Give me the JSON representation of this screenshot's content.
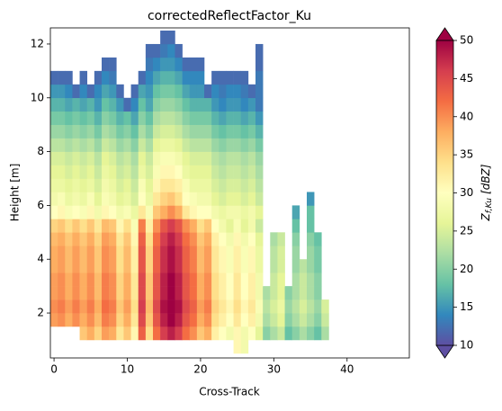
{
  "chart_data": {
    "type": "heatmap",
    "title": "correctedReflectFactor_Ku",
    "x_label": "Cross-Track",
    "y_label": "Height [m]",
    "colorbar_label": {
      "main": "Z",
      "sub": "f,Ku",
      "unit": "[dBZ]"
    },
    "xlim": [
      -0.5,
      48.5
    ],
    "xticks": [
      0,
      10,
      20,
      30,
      40
    ],
    "ylim": [
      0.33,
      12.6
    ],
    "yticks": [
      2,
      4,
      6,
      8,
      10,
      12
    ],
    "clim": [
      10,
      50
    ],
    "cticks": [
      10,
      15,
      20,
      25,
      30,
      35,
      40,
      45,
      50
    ],
    "colormap": [
      "#5e4fa2",
      "#3288bd",
      "#66c2a5",
      "#abdda4",
      "#e6f598",
      "#ffffbf",
      "#fee08b",
      "#fdae61",
      "#f46d43",
      "#d53e4f",
      "#9e0142"
    ],
    "x": [
      0,
      1,
      2,
      3,
      4,
      5,
      6,
      7,
      8,
      9,
      10,
      11,
      12,
      13,
      14,
      15,
      16,
      17,
      18,
      19,
      20,
      21,
      22,
      23,
      24,
      25,
      26,
      27,
      28,
      29,
      30,
      31,
      32,
      33,
      34,
      35,
      36,
      37
    ],
    "y": [
      0.75,
      1.25,
      1.75,
      2.25,
      2.75,
      3.25,
      3.75,
      4.25,
      4.75,
      5.25,
      5.75,
      6.25,
      6.75,
      7.25,
      7.75,
      8.25,
      8.75,
      9.25,
      9.75,
      10.25,
      10.75,
      11.25,
      11.75,
      12.25
    ],
    "z": [
      [
        null,
        null,
        null,
        null,
        null,
        null,
        null,
        null,
        null,
        null,
        null,
        null,
        null,
        null,
        null,
        null,
        null,
        null,
        null,
        null,
        null,
        null,
        null,
        null,
        null,
        31,
        28,
        null,
        null,
        null,
        null,
        null,
        null,
        null,
        null,
        null,
        null,
        null
      ],
      [
        null,
        null,
        null,
        null,
        36,
        38,
        35,
        39,
        38,
        33,
        36,
        31,
        43,
        34,
        42,
        46,
        48,
        46,
        42,
        40,
        36,
        38,
        32,
        30,
        28,
        31,
        28,
        30,
        26,
        20,
        22,
        24,
        18,
        20,
        22,
        20,
        18,
        22
      ],
      [
        39,
        40,
        38,
        40,
        38,
        40,
        37,
        41,
        40,
        35,
        38,
        33,
        45,
        36,
        44,
        48,
        50,
        48,
        44,
        42,
        38,
        40,
        34,
        32,
        30,
        33,
        30,
        32,
        28,
        22,
        24,
        26,
        20,
        22,
        24,
        22,
        20,
        24
      ],
      [
        40,
        41,
        39,
        41,
        39,
        41,
        38,
        42,
        41,
        36,
        39,
        34,
        46,
        37,
        45,
        49,
        50,
        49,
        45,
        43,
        39,
        41,
        35,
        33,
        31,
        34,
        31,
        33,
        29,
        23,
        25,
        27,
        21,
        23,
        25,
        23,
        21,
        25
      ],
      [
        39,
        40,
        38,
        40,
        38,
        40,
        37,
        41,
        40,
        35,
        38,
        33,
        45,
        36,
        44,
        48,
        50,
        48,
        44,
        42,
        38,
        40,
        34,
        32,
        30,
        33,
        30,
        32,
        28,
        22,
        24,
        26,
        20,
        22,
        24,
        22,
        20,
        null
      ],
      [
        39,
        40,
        38,
        40,
        38,
        40,
        37,
        41,
        40,
        35,
        38,
        33,
        45,
        36,
        44,
        48,
        50,
        48,
        44,
        42,
        38,
        40,
        34,
        32,
        30,
        33,
        30,
        32,
        28,
        null,
        24,
        26,
        null,
        22,
        24,
        22,
        20,
        null
      ],
      [
        38,
        39,
        37,
        39,
        37,
        39,
        36,
        40,
        39,
        34,
        37,
        32,
        44,
        35,
        43,
        47,
        49,
        47,
        43,
        41,
        37,
        39,
        33,
        31,
        29,
        32,
        29,
        31,
        27,
        null,
        23,
        25,
        null,
        21,
        23,
        21,
        19,
        null
      ],
      [
        38,
        39,
        37,
        39,
        37,
        39,
        36,
        40,
        39,
        34,
        37,
        32,
        44,
        35,
        43,
        47,
        49,
        47,
        43,
        41,
        37,
        39,
        33,
        31,
        29,
        32,
        29,
        31,
        27,
        null,
        23,
        25,
        null,
        21,
        null,
        21,
        19,
        null
      ],
      [
        37,
        38,
        36,
        38,
        36,
        38,
        35,
        39,
        38,
        33,
        36,
        31,
        43,
        34,
        42,
        46,
        48,
        46,
        42,
        40,
        36,
        38,
        32,
        30,
        28,
        31,
        28,
        30,
        26,
        null,
        22,
        24,
        null,
        20,
        null,
        20,
        18,
        null
      ],
      [
        35,
        36,
        34,
        36,
        34,
        36,
        33,
        37,
        36,
        31,
        34,
        29,
        41,
        32,
        40,
        44,
        46,
        44,
        40,
        38,
        34,
        36,
        30,
        28,
        26,
        29,
        26,
        28,
        24,
        null,
        null,
        null,
        null,
        18,
        null,
        18,
        null,
        null
      ],
      [
        30,
        31,
        29,
        30,
        29,
        31,
        28,
        31,
        30,
        28,
        29,
        27,
        33,
        29,
        36,
        38,
        40,
        38,
        33,
        31,
        30,
        30,
        28,
        27,
        28,
        28,
        27,
        28,
        26,
        null,
        null,
        null,
        null,
        16,
        null,
        18,
        null,
        null
      ],
      [
        28,
        29,
        27,
        28,
        27,
        29,
        26,
        29,
        28,
        26,
        27,
        25,
        30,
        27,
        33,
        35,
        36,
        34,
        30,
        29,
        28,
        28,
        26,
        25,
        26,
        26,
        25,
        26,
        24,
        null,
        null,
        null,
        null,
        null,
        null,
        15,
        null,
        null
      ],
      [
        27,
        27,
        26,
        27,
        26,
        27,
        25,
        28,
        27,
        25,
        26,
        24,
        29,
        26,
        31,
        33,
        33,
        32,
        29,
        27,
        27,
        27,
        25,
        24,
        25,
        25,
        24,
        25,
        23,
        null,
        null,
        null,
        null,
        null,
        null,
        null,
        null,
        null
      ],
      [
        26,
        26,
        25,
        26,
        25,
        26,
        24,
        27,
        26,
        24,
        25,
        23,
        27,
        25,
        29,
        31,
        31,
        30,
        27,
        26,
        26,
        26,
        24,
        23,
        24,
        24,
        23,
        24,
        22,
        null,
        null,
        null,
        null,
        null,
        null,
        null,
        null,
        null
      ],
      [
        25,
        25,
        24,
        25,
        24,
        25,
        23,
        26,
        25,
        23,
        24,
        22,
        26,
        24,
        28,
        29,
        29,
        28,
        26,
        25,
        25,
        25,
        23,
        22,
        23,
        23,
        22,
        23,
        21,
        null,
        null,
        null,
        null,
        null,
        null,
        null,
        null,
        null
      ],
      [
        23,
        23,
        22,
        23,
        22,
        23,
        21,
        24,
        23,
        21,
        22,
        20,
        24,
        22,
        26,
        27,
        27,
        26,
        24,
        23,
        23,
        23,
        21,
        20,
        21,
        21,
        20,
        21,
        19,
        null,
        null,
        null,
        null,
        null,
        null,
        null,
        null,
        null
      ],
      [
        21,
        21,
        20,
        21,
        20,
        21,
        19,
        22,
        21,
        19,
        20,
        18,
        22,
        20,
        24,
        25,
        25,
        24,
        22,
        21,
        21,
        21,
        19,
        18,
        19,
        19,
        18,
        19,
        17,
        null,
        null,
        null,
        null,
        null,
        null,
        null,
        null,
        null
      ],
      [
        19,
        19,
        18,
        19,
        18,
        19,
        17,
        20,
        19,
        17,
        18,
        16,
        20,
        18,
        22,
        23,
        23,
        22,
        20,
        19,
        19,
        19,
        17,
        16,
        17,
        17,
        16,
        17,
        15,
        null,
        null,
        null,
        null,
        null,
        null,
        null,
        null,
        null
      ],
      [
        17,
        17,
        16,
        17,
        16,
        17,
        15,
        18,
        17,
        15,
        12,
        14,
        18,
        16,
        20,
        21,
        21,
        20,
        18,
        17,
        17,
        17,
        15,
        14,
        15,
        15,
        14,
        15,
        13,
        null,
        null,
        null,
        null,
        null,
        null,
        null,
        null,
        null
      ],
      [
        15,
        15,
        14,
        12,
        14,
        12,
        14,
        16,
        15,
        12,
        null,
        12,
        16,
        15,
        18,
        19,
        19,
        18,
        16,
        15,
        15,
        12,
        14,
        13,
        14,
        14,
        13,
        12,
        13,
        null,
        null,
        null,
        null,
        null,
        null,
        null,
        null,
        null
      ],
      [
        12,
        12,
        12,
        null,
        12,
        null,
        12,
        14,
        13,
        null,
        null,
        null,
        12,
        14,
        16,
        17,
        17,
        16,
        14,
        14,
        14,
        null,
        12,
        12,
        12,
        12,
        12,
        null,
        13,
        null,
        null,
        null,
        null,
        null,
        null,
        null,
        null,
        null
      ],
      [
        null,
        null,
        null,
        null,
        null,
        null,
        null,
        12,
        12,
        null,
        null,
        null,
        null,
        13,
        14,
        15,
        15,
        14,
        12,
        12,
        12,
        null,
        null,
        null,
        null,
        null,
        null,
        null,
        12,
        null,
        null,
        null,
        null,
        null,
        null,
        null,
        null,
        null
      ],
      [
        null,
        null,
        null,
        null,
        null,
        null,
        null,
        null,
        null,
        null,
        null,
        null,
        null,
        12,
        12,
        13,
        14,
        12,
        null,
        null,
        null,
        null,
        null,
        null,
        null,
        null,
        null,
        null,
        12,
        null,
        null,
        null,
        null,
        null,
        null,
        null,
        null,
        null
      ],
      [
        null,
        null,
        null,
        null,
        null,
        null,
        null,
        null,
        null,
        null,
        null,
        null,
        null,
        null,
        null,
        12,
        12,
        null,
        null,
        null,
        null,
        null,
        null,
        null,
        null,
        null,
        null,
        null,
        null,
        null,
        null,
        null,
        null,
        null,
        null,
        null,
        null,
        null
      ]
    ]
  }
}
